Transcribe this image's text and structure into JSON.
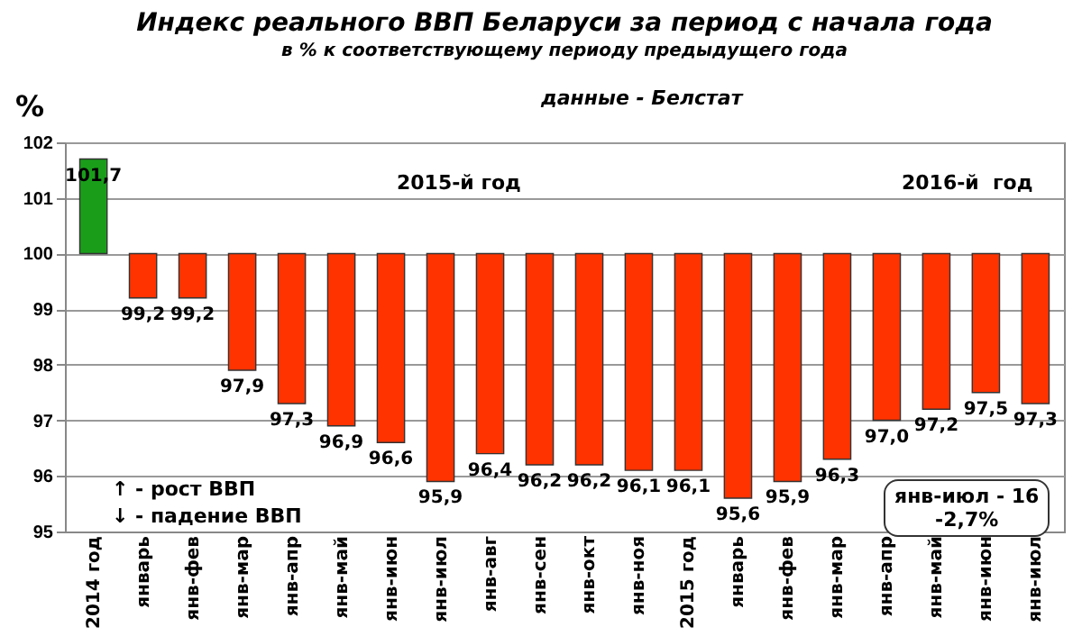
{
  "chart_data": {
    "type": "bar",
    "title": "Индекс реального  ВВП Беларуси за период с начала года",
    "subtitle": "в % к соответствующему периоду предыдущего года",
    "ylabel": "%",
    "categories": [
      "2014 год",
      "январь",
      "янв-фев",
      "янв-мар",
      "янв-апр",
      "янв-май",
      "янв-июн",
      "янв-июл",
      "янв-авг",
      "янв-сен",
      "янв-окт",
      "янв-ноя",
      "2015 год",
      "январь",
      "янв-фев",
      "янв-мар",
      "янв-апр",
      "янв-май",
      "янв-июн",
      "янв-июл"
    ],
    "base": [
      100,
      100,
      100,
      100,
      100,
      100,
      100,
      100,
      100,
      100,
      100,
      100,
      100,
      100,
      100,
      100,
      100,
      100,
      100,
      100
    ],
    "values": [
      1.7,
      -0.8,
      -0.8,
      -2.1,
      -2.7,
      -3.1,
      -3.4,
      -4.1,
      -3.6,
      -3.8,
      -3.8,
      -3.9,
      -3.9,
      -4.4,
      -4.1,
      -3.7,
      -3.0,
      -2.8,
      -2.5,
      -2.7
    ],
    "value_labels": [
      "101,7",
      "99,2",
      "99,2",
      "97,9",
      "97,3",
      "96,9",
      "96,6",
      "95,9",
      "96,4",
      "96,2",
      "96,2",
      "96,1",
      "96,1",
      "95,6",
      "95,9",
      "96,3",
      "97,0",
      "97,2",
      "97,5",
      "97,3"
    ],
    "colors": [
      "#1a9e1a",
      "#ff3300",
      "#ff3300",
      "#ff3300",
      "#ff3300",
      "#ff3300",
      "#ff3300",
      "#ff3300",
      "#ff3300",
      "#ff3300",
      "#ff3300",
      "#ff3300",
      "#ff3300",
      "#ff3300",
      "#ff3300",
      "#ff3300",
      "#ff3300",
      "#ff3300",
      "#ff3300",
      "#ff3300"
    ],
    "ylim": [
      95,
      102
    ],
    "yticks": [
      95,
      96,
      97,
      98,
      99,
      100,
      101,
      102
    ],
    "grid": "y",
    "annotations": [
      "данные - Белстат",
      "2015-й год",
      "2016-й  год",
      "↑ - рост ВВП",
      "↓ - падение ВВП",
      "янв-июл - 16\n-2,7%"
    ]
  }
}
